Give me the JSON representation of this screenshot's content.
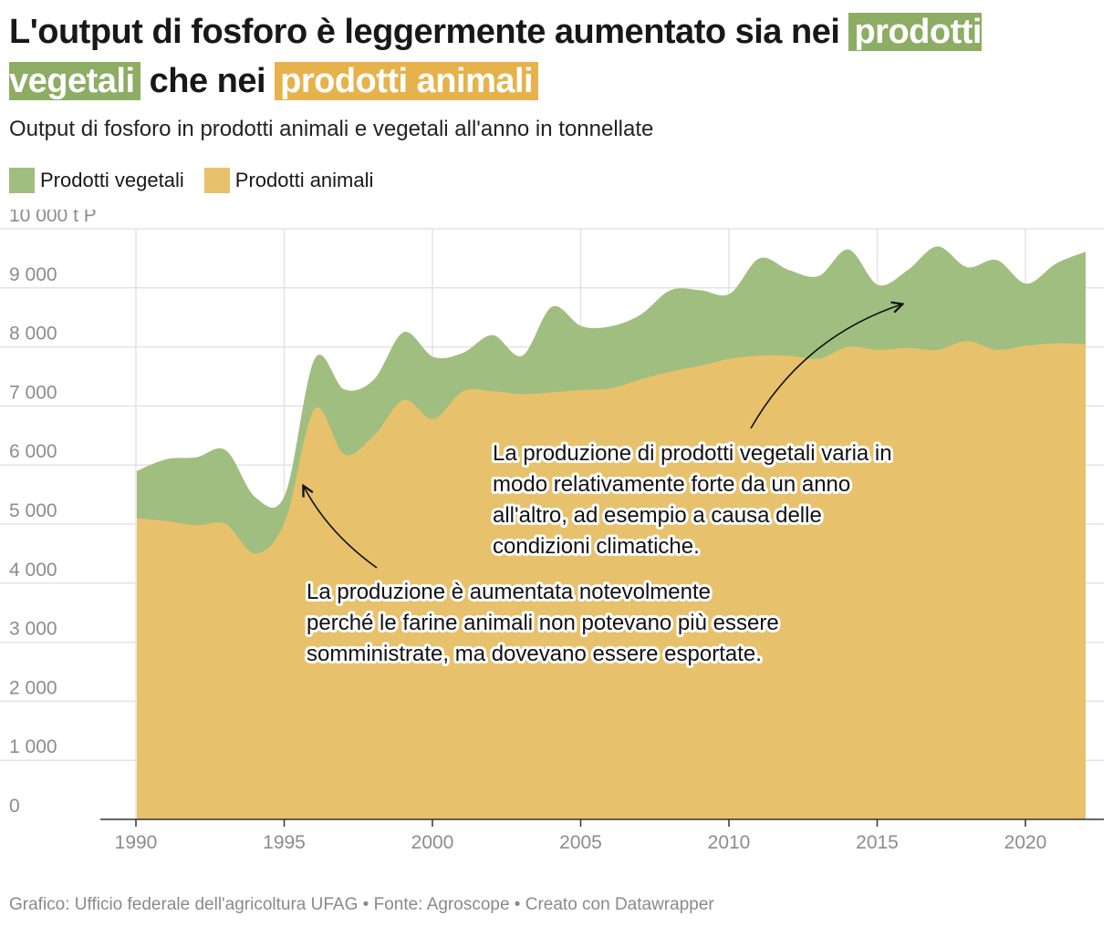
{
  "title": {
    "part1": "L'output di fosforo è leggermente aumentato sia nei",
    "highlight_veg": "prodotti vegetali",
    "part2": "che nei",
    "highlight_ani": "prodotti animali"
  },
  "subtitle": "Output di fosforo in prodotti animali e vegetali all'anno in tonnellate",
  "legend": [
    {
      "label": "Prodotti vegetali",
      "color": "#a0be7f"
    },
    {
      "label": "Prodotti animali",
      "color": "#e8c16c"
    }
  ],
  "colors": {
    "vegetal": "#a0be7f",
    "animal": "#e8c16c",
    "grid": "#e3e3e3",
    "axis": "#333333"
  },
  "chart_data": {
    "type": "area",
    "stacked": true,
    "title": "Output di fosforo in prodotti animali e vegetali all'anno in tonnellate",
    "xlabel": "",
    "ylabel": "t P",
    "xlim": [
      1990,
      2022
    ],
    "ylim": [
      0,
      10000
    ],
    "y_ticks": [
      0,
      1000,
      2000,
      3000,
      4000,
      5000,
      6000,
      7000,
      8000,
      9000,
      10000
    ],
    "y_tick_labels": [
      "0",
      "1 000",
      "2 000",
      "3 000",
      "4 000",
      "5 000",
      "6 000",
      "7 000",
      "8 000",
      "9 000",
      "10 000 t P"
    ],
    "x_ticks": [
      1990,
      1995,
      2000,
      2005,
      2010,
      2015,
      2020
    ],
    "x_tick_labels": [
      "1990",
      "1995",
      "2000",
      "2005",
      "2010",
      "2015",
      "2020"
    ],
    "x": [
      1990,
      1991,
      1992,
      1993,
      1994,
      1995,
      1996,
      1997,
      1998,
      1999,
      2000,
      2001,
      2002,
      2003,
      2004,
      2005,
      2006,
      2007,
      2008,
      2009,
      2010,
      2011,
      2012,
      2013,
      2014,
      2015,
      2016,
      2017,
      2018,
      2019,
      2020,
      2021,
      2022
    ],
    "series": [
      {
        "name": "Prodotti animali",
        "values": [
          5100,
          5050,
          4980,
          5000,
          4500,
          5050,
          6950,
          6180,
          6500,
          7100,
          6780,
          7250,
          7250,
          7200,
          7230,
          7270,
          7300,
          7450,
          7580,
          7680,
          7800,
          7850,
          7850,
          7800,
          8000,
          7950,
          7980,
          7950,
          8100,
          7950,
          8020,
          8060,
          8050
        ]
      },
      {
        "name": "Prodotti vegetali",
        "values": [
          800,
          1050,
          1150,
          1250,
          950,
          450,
          850,
          1100,
          950,
          1150,
          1050,
          650,
          950,
          650,
          1450,
          1080,
          1050,
          1100,
          1380,
          1280,
          1100,
          1650,
          1450,
          1400,
          1650,
          1100,
          1320,
          1750,
          1250,
          1520,
          1050,
          1350,
          1560
        ]
      }
    ],
    "annotations": [
      {
        "lines": [
          "La produzione di prodotti vegetali varia in",
          "modo relativamente forte da un anno",
          "all'altro, ad esempio a causa delle",
          "condizioni climatiche."
        ]
      },
      {
        "lines": [
          "La produzione è aumentata notevolmente",
          "perché le farine animali non potevano più essere",
          "somministrate, ma dovevano essere esportate."
        ]
      }
    ]
  },
  "footer": "Grafico: Ufficio federale dell'agricoltura UFAG • Fonte: Agroscope • Creato con Datawrapper"
}
